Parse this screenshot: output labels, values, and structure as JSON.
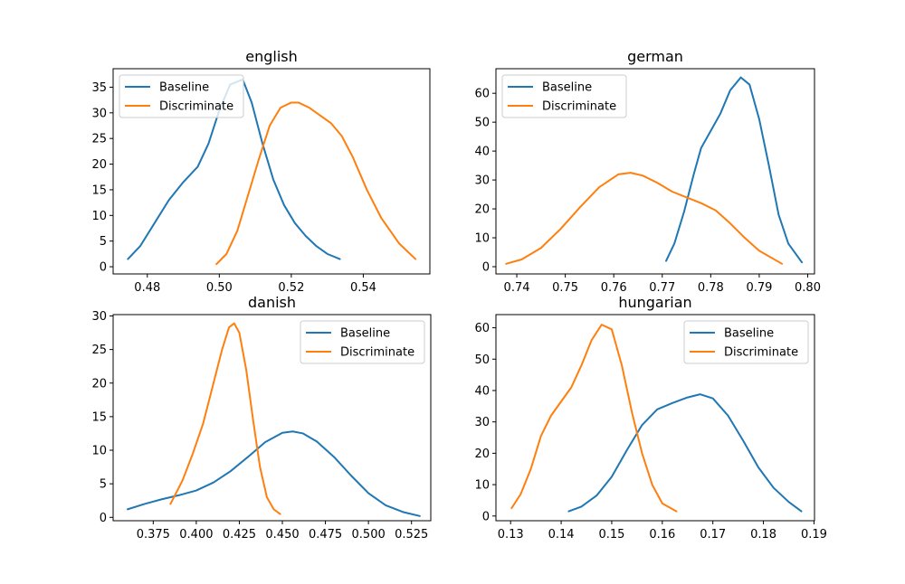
{
  "chart_data": [
    {
      "type": "line",
      "title": "english",
      "xlim": [
        0.4705,
        0.5585
      ],
      "ylim": [
        -1.4,
        38.6
      ],
      "xticks": [
        0.48,
        0.5,
        0.52,
        0.54
      ],
      "xtick_labels": [
        "0.48",
        "0.50",
        "0.52",
        "0.54"
      ],
      "yticks": [
        0,
        5,
        10,
        15,
        20,
        25,
        30,
        35
      ],
      "ytick_labels": [
        "0",
        "5",
        "10",
        "15",
        "20",
        "25",
        "30",
        "35"
      ],
      "legend": "top-left",
      "series": [
        {
          "name": "Baseline",
          "color": "#1f77b4",
          "x": [
            0.4746,
            0.478,
            0.482,
            0.486,
            0.49,
            0.494,
            0.497,
            0.5,
            0.503,
            0.5065,
            0.509,
            0.512,
            0.515,
            0.518,
            0.521,
            0.524,
            0.527,
            0.53,
            0.5335
          ],
          "y": [
            1.5,
            4,
            8.5,
            13,
            16.5,
            19.5,
            24,
            30.5,
            35.5,
            36.5,
            32,
            24,
            17,
            12,
            8.5,
            6,
            4,
            2.5,
            1.5
          ]
        },
        {
          "name": "Discriminate",
          "color": "#ff7f0e",
          "x": [
            0.4992,
            0.502,
            0.505,
            0.508,
            0.511,
            0.514,
            0.517,
            0.52,
            0.522,
            0.525,
            0.528,
            0.531,
            0.534,
            0.537,
            0.541,
            0.545,
            0.55,
            0.5545
          ],
          "y": [
            0.5,
            2.5,
            7,
            14,
            21,
            27.5,
            31,
            32,
            32,
            31,
            29.5,
            28,
            25.5,
            21.5,
            15,
            9.5,
            4.5,
            1.5
          ]
        }
      ]
    },
    {
      "type": "line",
      "title": "german",
      "xlim": [
        0.7357,
        0.8014
      ],
      "ylim": [
        -2.5,
        68.5
      ],
      "xticks": [
        0.74,
        0.75,
        0.76,
        0.77,
        0.78,
        0.79,
        0.8
      ],
      "xtick_labels": [
        "0.74",
        "0.75",
        "0.76",
        "0.77",
        "0.78",
        "0.79",
        "0.80"
      ],
      "yticks": [
        0,
        10,
        20,
        30,
        40,
        50,
        60
      ],
      "ytick_labels": [
        "0",
        "10",
        "20",
        "30",
        "40",
        "50",
        "60"
      ],
      "legend": "top-left",
      "series": [
        {
          "name": "Baseline",
          "color": "#1f77b4",
          "x": [
            0.7708,
            0.7725,
            0.7745,
            0.7765,
            0.778,
            0.78,
            0.782,
            0.784,
            0.7862,
            0.788,
            0.79,
            0.792,
            0.794,
            0.796,
            0.7988
          ],
          "y": [
            2,
            8,
            19,
            32,
            41,
            47,
            53,
            61,
            65.5,
            63,
            51,
            35,
            18,
            8,
            1.5
          ]
        },
        {
          "name": "Discriminate",
          "color": "#ff7f0e",
          "x": [
            0.7378,
            0.741,
            0.745,
            0.749,
            0.753,
            0.757,
            0.761,
            0.7635,
            0.766,
            0.769,
            0.772,
            0.775,
            0.778,
            0.781,
            0.784,
            0.787,
            0.79,
            0.7947
          ],
          "y": [
            1,
            2.5,
            6.5,
            13,
            20.5,
            27.5,
            32,
            32.5,
            31.5,
            29,
            26,
            24,
            22,
            19.5,
            15,
            10,
            5.5,
            1
          ]
        }
      ]
    },
    {
      "type": "line",
      "title": "danish",
      "xlim": [
        0.3517,
        0.5362
      ],
      "ylim": [
        -0.5,
        30.2
      ],
      "xticks": [
        0.375,
        0.4,
        0.425,
        0.45,
        0.475,
        0.5,
        0.525
      ],
      "xtick_labels": [
        "0.375",
        "0.400",
        "0.425",
        "0.450",
        "0.475",
        "0.500",
        "0.525"
      ],
      "yticks": [
        0,
        5,
        10,
        15,
        20,
        25,
        30
      ],
      "ytick_labels": [
        "0",
        "5",
        "10",
        "15",
        "20",
        "25",
        "30"
      ],
      "legend": "top-right",
      "series": [
        {
          "name": "Baseline",
          "color": "#1f77b4",
          "x": [
            0.3601,
            0.37,
            0.38,
            0.39,
            0.4,
            0.41,
            0.42,
            0.43,
            0.44,
            0.45,
            0.456,
            0.462,
            0.47,
            0.48,
            0.49,
            0.5,
            0.51,
            0.52,
            0.5298
          ],
          "y": [
            1.2,
            2,
            2.7,
            3.3,
            4,
            5.2,
            6.9,
            9,
            11.2,
            12.6,
            12.8,
            12.5,
            11.3,
            9,
            6.2,
            3.6,
            1.8,
            0.8,
            0.2
          ]
        },
        {
          "name": "Discriminate",
          "color": "#ff7f0e",
          "x": [
            0.385,
            0.392,
            0.398,
            0.404,
            0.41,
            0.415,
            0.419,
            0.422,
            0.425,
            0.429,
            0.433,
            0.437,
            0.441,
            0.445,
            0.4487
          ],
          "y": [
            2,
            5.5,
            9.5,
            14,
            20,
            25,
            28.3,
            28.9,
            27.5,
            22,
            14.5,
            7.5,
            3,
            1.2,
            0.5
          ]
        }
      ]
    },
    {
      "type": "line",
      "title": "hungarian",
      "xlim": [
        0.1271,
        0.1901
      ],
      "ylim": [
        -1.5,
        64.2
      ],
      "xticks": [
        0.13,
        0.14,
        0.15,
        0.16,
        0.17,
        0.18,
        0.19
      ],
      "xtick_labels": [
        "0.13",
        "0.14",
        "0.15",
        "0.16",
        "0.17",
        "0.18",
        "0.19"
      ],
      "yticks": [
        0,
        10,
        20,
        30,
        40,
        50,
        60
      ],
      "ytick_labels": [
        "0",
        "10",
        "20",
        "30",
        "40",
        "50",
        "60"
      ],
      "legend": "top-right",
      "series": [
        {
          "name": "Baseline",
          "color": "#1f77b4",
          "x": [
            0.1415,
            0.144,
            0.147,
            0.15,
            0.153,
            0.156,
            0.159,
            0.162,
            0.165,
            0.1675,
            0.17,
            0.173,
            0.176,
            0.179,
            0.182,
            0.185,
            0.1875
          ],
          "y": [
            1.5,
            3,
            6.5,
            12.5,
            21,
            29,
            34,
            36,
            37.8,
            38.8,
            37.5,
            32,
            24,
            15.5,
            9,
            4.5,
            1.5
          ]
        },
        {
          "name": "Discriminate",
          "color": "#ff7f0e",
          "x": [
            0.1302,
            0.132,
            0.134,
            0.136,
            0.138,
            0.14,
            0.142,
            0.144,
            0.146,
            0.148,
            0.15,
            0.152,
            0.154,
            0.156,
            0.158,
            0.16,
            0.1628
          ],
          "y": [
            2.5,
            7,
            15,
            25.5,
            32,
            36.5,
            41,
            48,
            56,
            61,
            59.5,
            48,
            33,
            20,
            10,
            4,
            1.5
          ]
        }
      ]
    }
  ]
}
